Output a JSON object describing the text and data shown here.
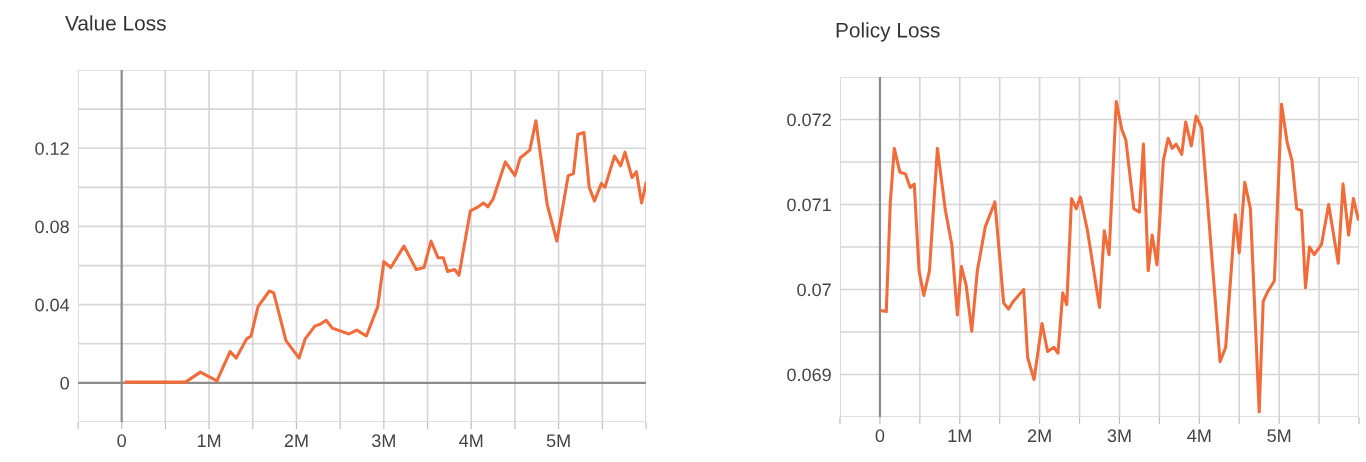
{
  "chart_data": [
    {
      "type": "line",
      "title": "Value Loss",
      "grid": true,
      "xlim": [
        -500000,
        6000000
      ],
      "xticks": [
        {
          "value": -500000,
          "label": null
        },
        0,
        {
          "value": 500000,
          "label": null
        },
        {
          "value": 1000000,
          "label": "1M"
        },
        {
          "value": 1500000,
          "label": null
        },
        {
          "value": 2000000,
          "label": "2M"
        },
        {
          "value": 2500000,
          "label": null
        },
        {
          "value": 3000000,
          "label": "3M"
        },
        {
          "value": 3500000,
          "label": null
        },
        {
          "value": 4000000,
          "label": "4M"
        },
        {
          "value": 4500000,
          "label": null
        },
        {
          "value": 5000000,
          "label": "5M"
        },
        {
          "value": 5500000,
          "label": null
        },
        {
          "value": 6000000,
          "label": null
        }
      ],
      "ylim": [
        -0.02,
        0.16
      ],
      "yticks": [
        {
          "value": -0.02,
          "label": null
        },
        0,
        {
          "value": 0.02,
          "label": null
        },
        0.04,
        {
          "value": 0.06,
          "label": null
        },
        0.08,
        {
          "value": 0.1,
          "label": null
        },
        0.12,
        {
          "value": 0.14,
          "label": null
        },
        {
          "value": 0.16,
          "label": null
        }
      ],
      "series": [
        {
          "color": "#f26b3a",
          "x": [
            50000,
            730000,
            900000,
            1090000,
            1240000,
            1310000,
            1430000,
            1480000,
            1560000,
            1690000,
            1740000,
            1880000,
            2030000,
            2100000,
            2210000,
            2270000,
            2340000,
            2410000,
            2600000,
            2690000,
            2800000,
            2930000,
            3000000,
            3080000,
            3230000,
            3370000,
            3460000,
            3540000,
            3620000,
            3680000,
            3730000,
            3810000,
            3860000,
            3990000,
            4080000,
            4140000,
            4190000,
            4250000,
            4390000,
            4500000,
            4560000,
            4670000,
            4740000,
            4870000,
            4980000,
            5110000,
            5170000,
            5220000,
            5290000,
            5350000,
            5410000,
            5490000,
            5530000,
            5640000,
            5710000,
            5760000,
            5840000,
            5890000,
            5950000,
            6000000
          ],
          "values": [
            0.0004,
            0.0004,
            0.0055,
            0.001,
            0.016,
            0.0127,
            0.0225,
            0.024,
            0.039,
            0.047,
            0.046,
            0.0216,
            0.0127,
            0.0225,
            0.029,
            0.03,
            0.032,
            0.028,
            0.025,
            0.027,
            0.024,
            0.039,
            0.062,
            0.059,
            0.07,
            0.058,
            0.059,
            0.0725,
            0.064,
            0.064,
            0.057,
            0.058,
            0.055,
            0.088,
            0.09,
            0.092,
            0.09,
            0.094,
            0.113,
            0.106,
            0.115,
            0.119,
            0.134,
            0.091,
            0.0725,
            0.106,
            0.107,
            0.127,
            0.128,
            0.1,
            0.093,
            0.102,
            0.1,
            0.116,
            0.111,
            0.118,
            0.105,
            0.108,
            0.092,
            0.102
          ]
        }
      ]
    },
    {
      "type": "line",
      "title": "Policy Loss",
      "grid": true,
      "xlim": [
        -500000,
        6000000
      ],
      "xticks": [
        {
          "value": -500000,
          "label": null
        },
        0,
        {
          "value": 500000,
          "label": null
        },
        {
          "value": 1000000,
          "label": "1M"
        },
        {
          "value": 1500000,
          "label": null
        },
        {
          "value": 2000000,
          "label": "2M"
        },
        {
          "value": 2500000,
          "label": null
        },
        {
          "value": 3000000,
          "label": "3M"
        },
        {
          "value": 3500000,
          "label": null
        },
        {
          "value": 4000000,
          "label": "4M"
        },
        {
          "value": 4500000,
          "label": null
        },
        {
          "value": 5000000,
          "label": "5M"
        },
        {
          "value": 5500000,
          "label": null
        },
        {
          "value": 6000000,
          "label": null
        }
      ],
      "ylim": [
        0.0685,
        0.0725
      ],
      "yticks": [
        {
          "value": 0.0685,
          "label": null
        },
        0.069,
        {
          "value": 0.0695,
          "label": null
        },
        0.07,
        {
          "value": 0.0705,
          "label": null
        },
        0.071,
        {
          "value": 0.0715,
          "label": null
        },
        0.072,
        {
          "value": 0.0725,
          "label": null
        }
      ],
      "series": [
        {
          "color": "#f26b3a",
          "x": [
            30000,
            80000,
            130000,
            180000,
            250000,
            320000,
            380000,
            430000,
            490000,
            550000,
            620000,
            720000,
            820000,
            900000,
            970000,
            1020000,
            1080000,
            1150000,
            1220000,
            1320000,
            1440000,
            1550000,
            1610000,
            1670000,
            1800000,
            1850000,
            1930000,
            2030000,
            2100000,
            2180000,
            2230000,
            2290000,
            2340000,
            2400000,
            2460000,
            2510000,
            2600000,
            2750000,
            2810000,
            2870000,
            2960000,
            3030000,
            3080000,
            3180000,
            3250000,
            3300000,
            3360000,
            3410000,
            3470000,
            3550000,
            3610000,
            3660000,
            3710000,
            3780000,
            3830000,
            3900000,
            3960000,
            4030000,
            4260000,
            4330000,
            4450000,
            4500000,
            4570000,
            4640000,
            4750000,
            4800000,
            4860000,
            4940000,
            5030000,
            5100000,
            5160000,
            5220000,
            5280000,
            5330000,
            5380000,
            5440000,
            5530000,
            5620000,
            5740000,
            5800000,
            5870000,
            5930000,
            5990000
          ],
          "values": [
            0.06975,
            0.06974,
            0.07102,
            0.07166,
            0.07138,
            0.07136,
            0.0712,
            0.07124,
            0.07022,
            0.06993,
            0.07022,
            0.07166,
            0.07093,
            0.07053,
            0.0697,
            0.07027,
            0.07005,
            0.06951,
            0.07022,
            0.07074,
            0.07103,
            0.06984,
            0.06977,
            0.06986,
            0.07,
            0.0692,
            0.06894,
            0.0696,
            0.06927,
            0.06932,
            0.06925,
            0.06996,
            0.06982,
            0.07107,
            0.07095,
            0.07109,
            0.07069,
            0.06979,
            0.07069,
            0.07041,
            0.07221,
            0.07188,
            0.07176,
            0.07095,
            0.07091,
            0.07171,
            0.07022,
            0.07064,
            0.07029,
            0.07152,
            0.07178,
            0.07166,
            0.07171,
            0.07159,
            0.07197,
            0.07169,
            0.07204,
            0.0719,
            0.06915,
            0.06932,
            0.07088,
            0.07043,
            0.07126,
            0.07095,
            0.06856,
            0.06986,
            0.06998,
            0.0701,
            0.07218,
            0.07173,
            0.07152,
            0.07095,
            0.07093,
            0.07002,
            0.0705,
            0.07041,
            0.07053,
            0.071,
            0.07031,
            0.07124,
            0.07064,
            0.07107,
            0.07083
          ]
        }
      ]
    }
  ]
}
